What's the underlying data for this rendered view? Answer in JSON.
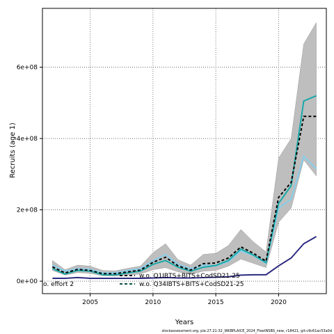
{
  "chart_data": {
    "type": "line",
    "xlabel": "Years",
    "ylabel": "Recruits (age 1)",
    "xlim": [
      2001.2,
      2023.8
    ],
    "ylim": [
      -35000000,
      765000000
    ],
    "x_ticks": [
      2005,
      2010,
      2015,
      2020
    ],
    "y_ticks": [
      0,
      200000000,
      400000000,
      600000000
    ],
    "y_tick_labels": [
      "0e+00",
      "2e+08",
      "4e+08",
      "6e+08"
    ],
    "grid": true,
    "legend_position": "bottom",
    "x": [
      2002,
      2003,
      2004,
      2005,
      2006,
      2007,
      2008,
      2009,
      2010,
      2011,
      2012,
      2013,
      2014,
      2015,
      2016,
      2017,
      2018,
      2019,
      2020,
      2021,
      2022,
      2023
    ],
    "band": {
      "color": "#bebebe",
      "lower": [
        30000000,
        17000000,
        24000000,
        22000000,
        15000000,
        14000000,
        17000000,
        20000000,
        32000000,
        38000000,
        26000000,
        19000000,
        28000000,
        30000000,
        42000000,
        62000000,
        50000000,
        38000000,
        165000000,
        205000000,
        340000000,
        295000000
      ],
      "upper": [
        58000000,
        32000000,
        45000000,
        42000000,
        30000000,
        29000000,
        36000000,
        42000000,
        80000000,
        105000000,
        60000000,
        45000000,
        75000000,
        78000000,
        100000000,
        145000000,
        110000000,
        82000000,
        345000000,
        400000000,
        665000000,
        725000000
      ]
    },
    "series": [
      {
        "name": "",
        "color": "#000000",
        "style": "dashed",
        "values": [
          40000000,
          23000000,
          33000000,
          30000000,
          21000000,
          21000000,
          26000000,
          31000000,
          53000000,
          67000000,
          43000000,
          31000000,
          49000000,
          51000000,
          65000000,
          96000000,
          78000000,
          56000000,
          235000000,
          277000000,
          462000000,
          462000000
        ]
      },
      {
        "name": "",
        "color": "#1aa8a8",
        "style": "solid",
        "values": [
          35000000,
          20000000,
          30000000,
          28000000,
          18000000,
          18000000,
          23000000,
          28000000,
          47000000,
          58000000,
          39000000,
          28000000,
          39000000,
          44000000,
          58000000,
          90000000,
          73000000,
          52000000,
          218000000,
          268000000,
          505000000,
          520000000
        ]
      },
      {
        "name": "",
        "color": "#87ceeb",
        "style": "solid",
        "values": [
          45000000,
          28000000,
          35000000,
          33000000,
          23000000,
          23000000,
          30000000,
          35000000,
          57000000,
          75000000,
          47000000,
          35000000,
          45000000,
          43000000,
          55000000,
          85000000,
          72000000,
          50000000,
          205000000,
          230000000,
          350000000,
          315000000
        ]
      },
      {
        "name": "",
        "color": "#2c2a7f",
        "style": "solid",
        "values": [
          8000000,
          8000000,
          10000000,
          8000000,
          8000000,
          8000000,
          8000000,
          8000000,
          9000000,
          10000000,
          9000000,
          9000000,
          10000000,
          11000000,
          12000000,
          17000000,
          18000000,
          18000000,
          43000000,
          65000000,
          105000000,
          125000000
        ]
      }
    ],
    "legend": [
      {
        "label": "w.o. Q1IBTS+BITS+CodSD21-25",
        "color": "#000000",
        "style": "dashed"
      },
      {
        "label": "w.o. Q34IBTS+BITS+CodSD21-25",
        "color": "#0b4f3f",
        "style": "dashed"
      }
    ],
    "partial_label": "o. effort 2",
    "footer": "stockassessment.org, ple.27.21-32_WKBPLAICE_2024_FleetNSBS_new, r18421, git:c9c61ac53a0d"
  }
}
